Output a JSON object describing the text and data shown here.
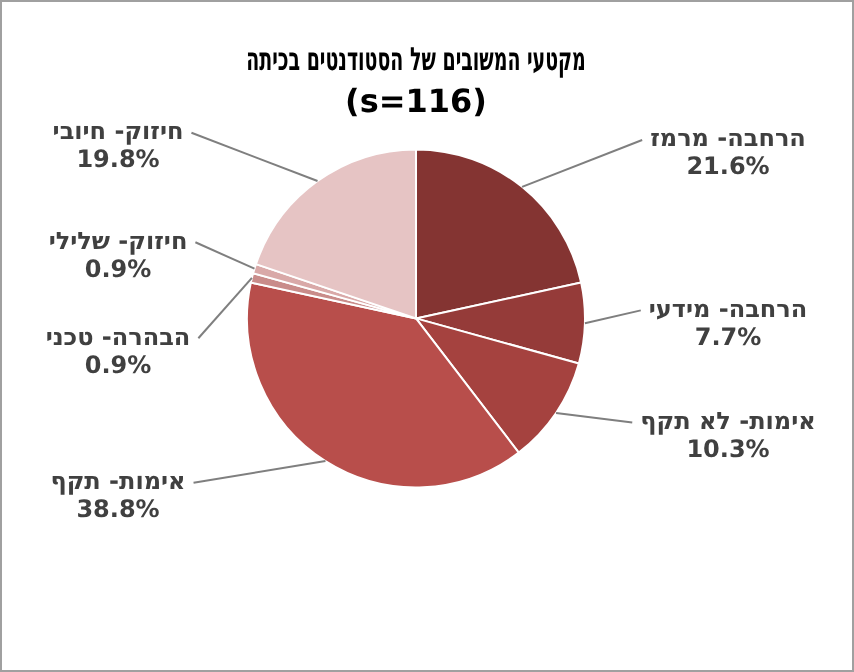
{
  "chart_data": {
    "type": "pie",
    "title": "מקטעי המשובים של הסטודנטים בכיתה",
    "subtitle": "(s=116)",
    "categories": [
      "הרחבה- מרמז",
      "הרחבה- מידעי",
      "אימות- לא תקף",
      "אימות- תקף",
      "הבהרה- טכני",
      "חיזוק- שלילי",
      "חיזוק- חיובי"
    ],
    "values": [
      21.6,
      7.7,
      10.3,
      38.8,
      0.9,
      0.9,
      19.8
    ],
    "value_labels": [
      "21.6%",
      "7.7%",
      "10.3%",
      "38.8%",
      "0.9%",
      "0.9%",
      "19.8%"
    ],
    "colors": [
      "#843432",
      "#953b39",
      "#a5423f",
      "#b84e4b",
      "#c98c8a",
      "#d9a9a8",
      "#e6c4c4"
    ],
    "legend": false
  }
}
